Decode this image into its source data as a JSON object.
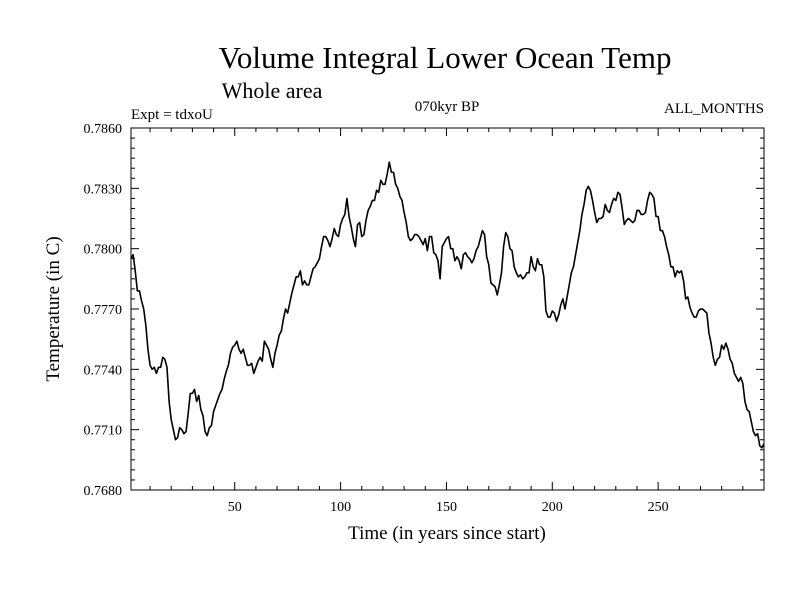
{
  "chart_data": {
    "type": "line",
    "title": "Volume Integral Lower Ocean Temp",
    "subtitle": "Whole area",
    "experiment_label": "Expt = tdxoU",
    "period_label": "070kyr BP",
    "months_label": "ALL_MONTHS",
    "xlabel": "Time (in years since start)",
    "ylabel": "Temperature (in C)",
    "xlim": [
      1,
      300
    ],
    "ylim": [
      0.768,
      0.786
    ],
    "x_ticks": [
      50,
      100,
      150,
      200,
      250
    ],
    "x_tick_labels": [
      "50",
      "100",
      "150",
      "200",
      "250"
    ],
    "y_ticks": [
      0.768,
      0.771,
      0.774,
      0.777,
      0.78,
      0.783,
      0.786
    ],
    "y_tick_labels": [
      "0.7680",
      "0.7710",
      "0.7740",
      "0.7770",
      "0.7800",
      "0.7830",
      "0.7860"
    ],
    "grid": false,
    "line_color": "#000000",
    "series": [
      {
        "x": [
          1,
          2,
          3,
          4,
          5,
          6,
          7,
          8,
          9,
          10,
          11,
          12,
          13,
          14,
          15,
          16,
          17,
          18,
          19,
          20,
          21,
          22,
          23,
          24,
          25,
          26,
          27,
          28,
          29,
          30,
          31,
          32,
          33,
          34,
          35,
          36,
          37,
          38,
          39,
          40,
          41,
          42,
          43,
          44,
          45,
          46,
          47,
          48,
          49,
          50,
          51,
          52,
          53,
          54,
          55,
          56,
          57,
          58,
          59,
          60,
          61,
          62,
          63,
          64,
          65,
          66,
          67,
          68,
          69,
          70,
          71,
          72,
          73,
          74,
          75,
          76,
          77,
          78,
          79,
          80,
          81,
          82,
          83,
          84,
          85,
          86,
          87,
          88,
          89,
          90,
          91,
          92,
          93,
          94,
          95,
          96,
          97,
          98,
          99,
          100,
          101,
          102,
          103,
          104,
          105,
          106,
          107,
          108,
          109,
          110,
          111,
          112,
          113,
          114,
          115,
          116,
          117,
          118,
          119,
          120,
          121,
          122,
          123,
          124,
          125,
          126,
          127,
          128,
          129,
          130,
          131,
          132,
          133,
          134,
          135,
          136,
          137,
          138,
          139,
          140,
          141,
          142,
          143,
          144,
          145,
          146,
          147,
          148,
          149,
          150,
          151,
          152,
          153,
          154,
          155,
          156,
          157,
          158,
          159,
          160,
          161,
          162,
          163,
          164,
          165,
          166,
          167,
          168,
          169,
          170,
          171,
          172,
          173,
          174,
          175,
          176,
          177,
          178,
          179,
          180,
          181,
          182,
          183,
          184,
          185,
          186,
          187,
          188,
          189,
          190,
          191,
          192,
          193,
          194,
          195,
          196,
          197,
          198,
          199,
          200,
          201,
          202,
          203,
          204,
          205,
          206,
          207,
          208,
          209,
          210,
          211,
          212,
          213,
          214,
          215,
          216,
          217,
          218,
          219,
          220,
          221,
          222,
          223,
          224,
          225,
          226,
          227,
          228,
          229,
          230,
          231,
          232,
          233,
          234,
          235,
          236,
          237,
          238,
          239,
          240,
          241,
          242,
          243,
          244,
          245,
          246,
          247,
          248,
          249,
          250,
          251,
          252,
          253,
          254,
          255,
          256,
          257,
          258,
          259,
          260,
          261,
          262,
          263,
          264,
          265,
          266,
          267,
          268,
          269,
          270,
          271,
          272,
          273,
          274,
          275,
          276,
          277,
          278,
          279,
          280,
          281,
          282,
          283,
          284,
          285,
          286,
          287,
          288,
          289,
          290,
          291,
          292,
          293,
          294,
          295,
          296,
          297,
          298,
          299,
          300
        ],
        "values": [
          0.7795,
          0.7797,
          0.7789,
          0.7779,
          0.7779,
          0.7774,
          0.777,
          0.7762,
          0.775,
          0.7742,
          0.774,
          0.7741,
          0.7738,
          0.7741,
          0.7741,
          0.7746,
          0.7745,
          0.7741,
          0.7724,
          0.7715,
          0.771,
          0.7705,
          0.7706,
          0.7711,
          0.771,
          0.7708,
          0.7709,
          0.7718,
          0.7728,
          0.7728,
          0.773,
          0.7724,
          0.7727,
          0.772,
          0.7717,
          0.7709,
          0.7707,
          0.7711,
          0.7712,
          0.7719,
          0.7722,
          0.7725,
          0.7728,
          0.773,
          0.7735,
          0.7739,
          0.7742,
          0.7748,
          0.7751,
          0.7752,
          0.7754,
          0.775,
          0.7748,
          0.775,
          0.7746,
          0.7742,
          0.7742,
          0.7743,
          0.7738,
          0.7741,
          0.7744,
          0.7746,
          0.7744,
          0.7754,
          0.7752,
          0.775,
          0.7745,
          0.7741,
          0.7748,
          0.7752,
          0.7757,
          0.7759,
          0.7765,
          0.777,
          0.7768,
          0.7773,
          0.7778,
          0.7782,
          0.7786,
          0.7786,
          0.7789,
          0.7782,
          0.7784,
          0.7782,
          0.7782,
          0.7786,
          0.779,
          0.7791,
          0.7793,
          0.7795,
          0.7801,
          0.7806,
          0.7806,
          0.7804,
          0.7801,
          0.7805,
          0.781,
          0.7807,
          0.7806,
          0.7812,
          0.7815,
          0.7817,
          0.7825,
          0.7816,
          0.7811,
          0.7805,
          0.7801,
          0.7812,
          0.7813,
          0.7806,
          0.7807,
          0.7814,
          0.7819,
          0.7821,
          0.7824,
          0.7824,
          0.7829,
          0.7828,
          0.7834,
          0.7832,
          0.7832,
          0.7837,
          0.7843,
          0.7838,
          0.7838,
          0.7832,
          0.783,
          0.7826,
          0.7824,
          0.7818,
          0.7813,
          0.7806,
          0.7804,
          0.7805,
          0.7807,
          0.7807,
          0.7806,
          0.7804,
          0.7802,
          0.7805,
          0.7799,
          0.7806,
          0.7806,
          0.7798,
          0.7797,
          0.7794,
          0.7785,
          0.7801,
          0.7803,
          0.7805,
          0.7806,
          0.78,
          0.78,
          0.7794,
          0.7796,
          0.7794,
          0.779,
          0.7797,
          0.7798,
          0.7796,
          0.7795,
          0.7793,
          0.7795,
          0.7799,
          0.7801,
          0.7805,
          0.7809,
          0.7807,
          0.7796,
          0.7792,
          0.7783,
          0.7782,
          0.7781,
          0.7777,
          0.7782,
          0.7788,
          0.7801,
          0.7808,
          0.7806,
          0.78,
          0.7799,
          0.7791,
          0.7788,
          0.7786,
          0.7787,
          0.7785,
          0.7786,
          0.7788,
          0.7788,
          0.7796,
          0.7791,
          0.7789,
          0.7795,
          0.7792,
          0.7792,
          0.7786,
          0.7769,
          0.7766,
          0.7766,
          0.7769,
          0.7768,
          0.7764,
          0.7767,
          0.7772,
          0.7775,
          0.777,
          0.7776,
          0.7782,
          0.7788,
          0.7791,
          0.7797,
          0.7803,
          0.7809,
          0.7817,
          0.7822,
          0.7829,
          0.7831,
          0.7829,
          0.7824,
          0.7818,
          0.7813,
          0.7815,
          0.7815,
          0.7816,
          0.7822,
          0.7819,
          0.7818,
          0.7822,
          0.7825,
          0.7824,
          0.7828,
          0.7827,
          0.782,
          0.7812,
          0.7814,
          0.7815,
          0.7814,
          0.7813,
          0.7814,
          0.7819,
          0.7819,
          0.7817,
          0.7817,
          0.7818,
          0.7824,
          0.7828,
          0.7827,
          0.7825,
          0.7816,
          0.7816,
          0.7809,
          0.7809,
          0.7806,
          0.7801,
          0.7797,
          0.7791,
          0.7791,
          0.7786,
          0.7789,
          0.7788,
          0.7789,
          0.7784,
          0.7775,
          0.7776,
          0.7771,
          0.7768,
          0.7766,
          0.7766,
          0.7769,
          0.777,
          0.777,
          0.7769,
          0.7768,
          0.7758,
          0.7753,
          0.7746,
          0.7742,
          0.7745,
          0.7746,
          0.7752,
          0.775,
          0.7753,
          0.775,
          0.7745,
          0.7743,
          0.7738,
          0.7736,
          0.7734,
          0.7736,
          0.7733,
          0.7724,
          0.772,
          0.7719,
          0.7714,
          0.7709,
          0.7707,
          0.7708,
          0.7702,
          0.7701,
          0.7703
        ]
      }
    ]
  }
}
